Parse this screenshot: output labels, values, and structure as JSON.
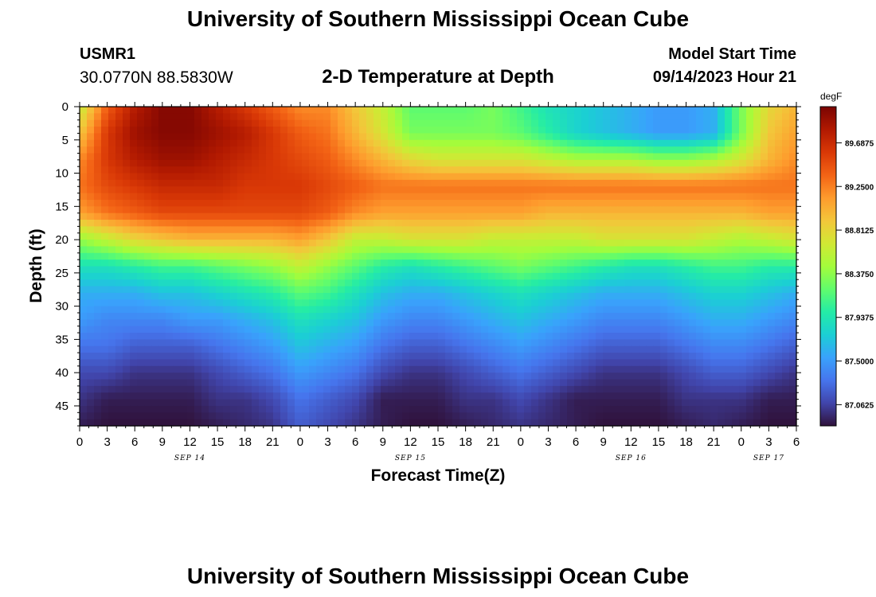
{
  "page": {
    "title": "University of Southern Mississippi Ocean Cube",
    "station_id": "USMR1",
    "coordinates": "30.0770N  88.5830W",
    "subtitle": "2-D Temperature at Depth",
    "model_start_label": "Model Start Time",
    "model_start_value": "09/14/2023 Hour 21",
    "bottom_title": "University of Southern Mississippi Ocean Cube"
  },
  "chart_data": {
    "type": "heatmap",
    "title": "2-D Temperature at Depth",
    "xlabel": "Forecast Time(Z)",
    "ylabel": "Depth (ft)",
    "x_range_hours": [
      0,
      78
    ],
    "y_range_ft": [
      0,
      48
    ],
    "x_ticks": [
      {
        "h": 0,
        "label": "0"
      },
      {
        "h": 3,
        "label": "3"
      },
      {
        "h": 6,
        "label": "6"
      },
      {
        "h": 9,
        "label": "9"
      },
      {
        "h": 12,
        "label": "12"
      },
      {
        "h": 15,
        "label": "15"
      },
      {
        "h": 18,
        "label": "18"
      },
      {
        "h": 21,
        "label": "21"
      },
      {
        "h": 24,
        "label": "0"
      },
      {
        "h": 27,
        "label": "3"
      },
      {
        "h": 30,
        "label": "6"
      },
      {
        "h": 33,
        "label": "9"
      },
      {
        "h": 36,
        "label": "12"
      },
      {
        "h": 39,
        "label": "15"
      },
      {
        "h": 42,
        "label": "18"
      },
      {
        "h": 45,
        "label": "21"
      },
      {
        "h": 48,
        "label": "0"
      },
      {
        "h": 51,
        "label": "3"
      },
      {
        "h": 54,
        "label": "6"
      },
      {
        "h": 57,
        "label": "9"
      },
      {
        "h": 60,
        "label": "12"
      },
      {
        "h": 63,
        "label": "15"
      },
      {
        "h": 66,
        "label": "18"
      },
      {
        "h": 69,
        "label": "21"
      },
      {
        "h": 72,
        "label": "0"
      },
      {
        "h": 75,
        "label": "3"
      },
      {
        "h": 78,
        "label": "6"
      }
    ],
    "date_labels": [
      {
        "h": 12,
        "label": "SEP 14"
      },
      {
        "h": 36,
        "label": "SEP 15"
      },
      {
        "h": 60,
        "label": "SEP 16"
      },
      {
        "h": 75,
        "label": "SEP 17"
      }
    ],
    "y_ticks": [
      0,
      5,
      10,
      15,
      20,
      25,
      30,
      35,
      40,
      45
    ],
    "colorbar": {
      "units": "degF",
      "min": 86.85,
      "max": 90.05,
      "labels": [
        {
          "value": 89.6875,
          "label": "89.6875"
        },
        {
          "value": 89.25,
          "label": "89.2500"
        },
        {
          "value": 88.8125,
          "label": "88.8125"
        },
        {
          "value": 88.375,
          "label": "88.3750"
        },
        {
          "value": 87.9375,
          "label": "87.9375"
        },
        {
          "value": 87.5,
          "label": "87.5000"
        },
        {
          "value": 87.0625,
          "label": "87.0625"
        }
      ]
    },
    "colormap": [
      "#30123b",
      "#4145ab",
      "#4675ed",
      "#39a2fc",
      "#1bcfd4",
      "#24eca6",
      "#61fc6c",
      "#a4fc3b",
      "#d1e834",
      "#f3c63a",
      "#fe9b2d",
      "#f36315",
      "#d93806",
      "#b11901",
      "#7a0402"
    ],
    "temperature_grid": {
      "hours": [
        0,
        3,
        6,
        9,
        12,
        15,
        18,
        21,
        24,
        27,
        30,
        33,
        36,
        39,
        42,
        45,
        48,
        51,
        54,
        57,
        60,
        63,
        66,
        69,
        72,
        75,
        78
      ],
      "depths_ft": [
        0,
        4,
        8,
        12,
        16,
        20,
        24,
        28,
        32,
        36,
        40,
        44,
        48
      ],
      "values_degF": [
        [
          88.6,
          89.4,
          89.8,
          90.0,
          90.0,
          89.8,
          89.6,
          89.4,
          89.2,
          89.2,
          88.9,
          88.6,
          88.2,
          88.2,
          88.2,
          88.3,
          88.1,
          87.9,
          87.8,
          87.7,
          87.6,
          87.5,
          87.5,
          87.6,
          88.3,
          88.8,
          89.0
        ],
        [
          88.9,
          89.6,
          89.9,
          90.0,
          90.0,
          89.9,
          89.8,
          89.6,
          89.4,
          89.3,
          89.0,
          88.7,
          88.3,
          88.3,
          88.3,
          88.3,
          88.2,
          88.0,
          87.8,
          87.7,
          87.6,
          87.5,
          87.5,
          87.6,
          88.3,
          88.9,
          89.1
        ],
        [
          89.2,
          89.6,
          89.8,
          89.9,
          89.9,
          89.8,
          89.7,
          89.6,
          89.5,
          89.4,
          89.2,
          89.0,
          88.8,
          88.7,
          88.7,
          88.7,
          88.7,
          88.6,
          88.5,
          88.5,
          88.5,
          88.4,
          88.4,
          88.5,
          88.7,
          89.0,
          89.2
        ],
        [
          89.3,
          89.5,
          89.6,
          89.7,
          89.7,
          89.7,
          89.6,
          89.6,
          89.6,
          89.5,
          89.4,
          89.3,
          89.3,
          89.3,
          89.3,
          89.3,
          89.3,
          89.3,
          89.3,
          89.3,
          89.3,
          89.3,
          89.3,
          89.3,
          89.3,
          89.3,
          89.3
        ],
        [
          89.1,
          89.3,
          89.4,
          89.5,
          89.5,
          89.5,
          89.5,
          89.5,
          89.5,
          89.4,
          89.2,
          89.1,
          89.1,
          89.1,
          89.1,
          89.1,
          89.1,
          89.0,
          89.0,
          89.0,
          89.0,
          89.0,
          89.0,
          89.0,
          89.0,
          89.1,
          89.1
        ],
        [
          88.4,
          88.6,
          88.8,
          88.9,
          89.0,
          89.0,
          89.0,
          89.0,
          89.1,
          88.9,
          88.6,
          88.6,
          88.7,
          88.7,
          88.7,
          88.6,
          88.6,
          88.6,
          88.6,
          88.7,
          88.7,
          88.7,
          88.7,
          88.6,
          88.5,
          88.6,
          88.7
        ],
        [
          87.9,
          87.9,
          88.0,
          88.1,
          88.1,
          88.2,
          88.3,
          88.4,
          88.6,
          88.4,
          88.2,
          88.0,
          87.9,
          88.0,
          88.1,
          88.2,
          88.3,
          88.2,
          88.1,
          88.0,
          87.9,
          87.9,
          88.0,
          88.1,
          88.1,
          88.0,
          88.0
        ],
        [
          87.6,
          87.6,
          87.6,
          87.7,
          87.7,
          87.8,
          87.9,
          88.0,
          88.2,
          88.1,
          87.9,
          87.7,
          87.6,
          87.6,
          87.7,
          87.8,
          87.9,
          87.8,
          87.7,
          87.6,
          87.6,
          87.6,
          87.7,
          87.8,
          87.8,
          87.7,
          87.6
        ],
        [
          87.5,
          87.4,
          87.4,
          87.4,
          87.5,
          87.5,
          87.6,
          87.7,
          87.9,
          87.8,
          87.7,
          87.5,
          87.4,
          87.4,
          87.5,
          87.6,
          87.7,
          87.6,
          87.5,
          87.4,
          87.4,
          87.4,
          87.5,
          87.6,
          87.6,
          87.5,
          87.4
        ],
        [
          87.3,
          87.3,
          87.2,
          87.2,
          87.2,
          87.3,
          87.4,
          87.5,
          87.7,
          87.6,
          87.5,
          87.3,
          87.2,
          87.2,
          87.3,
          87.4,
          87.5,
          87.4,
          87.3,
          87.2,
          87.2,
          87.2,
          87.3,
          87.4,
          87.4,
          87.3,
          87.2
        ],
        [
          87.1,
          87.1,
          87.0,
          87.0,
          87.0,
          87.1,
          87.2,
          87.3,
          87.5,
          87.4,
          87.3,
          87.1,
          87.0,
          87.0,
          87.1,
          87.2,
          87.3,
          87.2,
          87.1,
          87.0,
          87.0,
          87.0,
          87.1,
          87.2,
          87.2,
          87.1,
          87.0
        ],
        [
          87.0,
          86.9,
          86.9,
          86.9,
          86.9,
          87.0,
          87.0,
          87.1,
          87.3,
          87.2,
          87.1,
          86.9,
          86.9,
          86.9,
          87.0,
          87.0,
          87.1,
          87.0,
          86.9,
          86.9,
          86.9,
          86.9,
          87.0,
          87.0,
          87.0,
          86.9,
          86.9
        ],
        [
          86.9,
          86.85,
          86.85,
          86.85,
          86.85,
          86.9,
          86.95,
          87.0,
          87.2,
          87.1,
          87.0,
          86.9,
          86.85,
          86.85,
          86.9,
          86.95,
          87.0,
          86.95,
          86.9,
          86.85,
          86.85,
          86.85,
          86.9,
          86.95,
          86.9,
          86.85,
          86.85
        ]
      ]
    }
  }
}
